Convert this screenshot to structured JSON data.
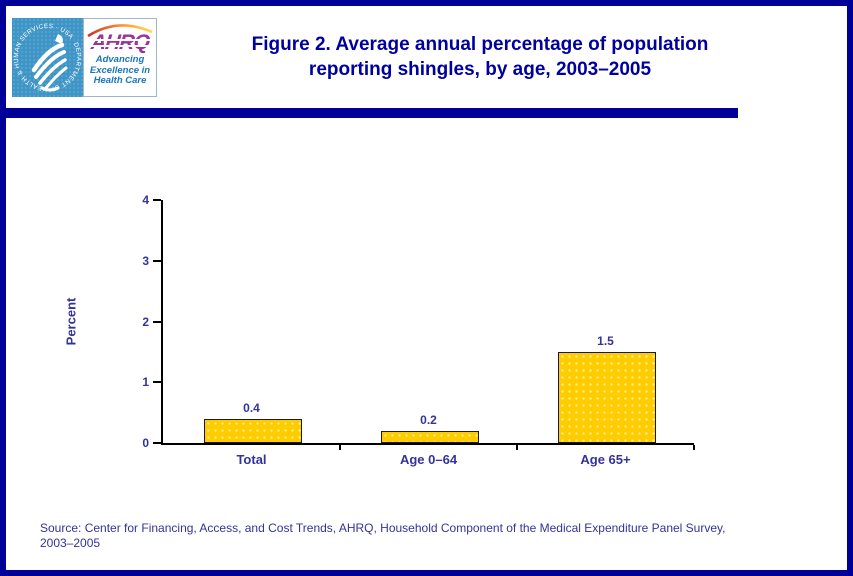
{
  "header": {
    "logo": {
      "hhs_seal_ring_text": "DEPARTMENT OF HEALTH & HUMAN SERVICES · USA",
      "ahrq_acronym": "AHRQ",
      "ahrq_tagline_lines": [
        "Advancing",
        "Excellence in",
        "Health Care"
      ]
    },
    "title_lines": [
      "Figure 2. Average annual percentage of population",
      "reporting shingles, by age, 2003–2005"
    ]
  },
  "chart_data": {
    "type": "bar",
    "title": "Figure 2. Average annual percentage of population reporting shingles, by age, 2003–2005",
    "categories": [
      "Total",
      "Age 0–64",
      "Age 65+"
    ],
    "values": [
      0.4,
      0.2,
      1.5
    ],
    "value_labels": [
      "0.4",
      "0.2",
      "1.5"
    ],
    "xlabel": "",
    "ylabel": "Percent",
    "ylim": [
      0,
      4
    ],
    "yticks": [
      0,
      1,
      2,
      3,
      4
    ],
    "grid": false,
    "legend": "none",
    "bar_color": "#FFCC00"
  },
  "footer": {
    "source_lines": [
      "Source: Center for Financing, Access, and Cost Trends, AHRQ, Household Component of the Medical Expenditure Panel Survey,",
      "2003–2005"
    ]
  },
  "colors": {
    "page_border": "#000099",
    "divider_bar": "#000099",
    "title_text": "#0000A0",
    "chart_text": "#333399",
    "bar_fill": "#FFCC00",
    "axis": "#000000",
    "hhs_logo_background": "#3E95C6",
    "ahrq_purple": "#993399",
    "ahrq_tagline_blue": "#1B75BB"
  }
}
